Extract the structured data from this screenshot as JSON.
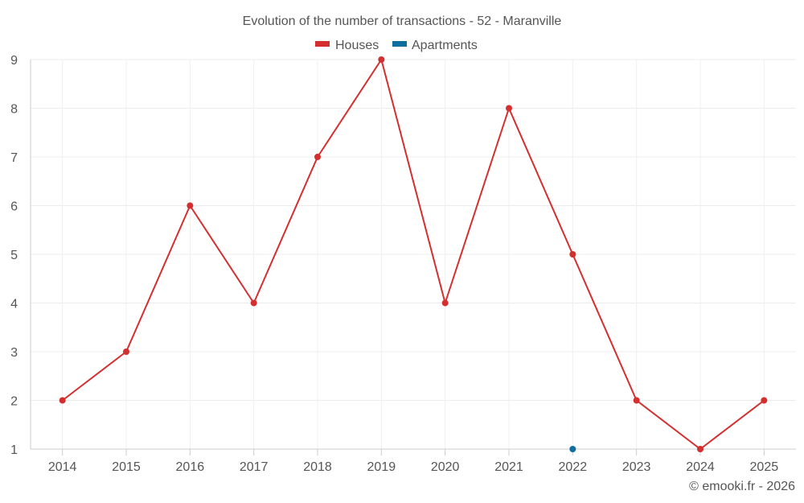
{
  "chart_data": {
    "type": "line",
    "title": "Evolution of the number of transactions - 52 - Maranville",
    "categories": [
      "2014",
      "2015",
      "2016",
      "2017",
      "2018",
      "2019",
      "2020",
      "2021",
      "2022",
      "2023",
      "2024",
      "2025"
    ],
    "series": [
      {
        "name": "Houses",
        "color": "#d32f2f",
        "values": [
          2,
          3,
          6,
          4,
          7,
          9,
          4,
          8,
          5,
          2,
          1,
          2
        ]
      },
      {
        "name": "Apartments",
        "color": "#0d6ea0",
        "values": [
          null,
          null,
          null,
          null,
          null,
          null,
          null,
          null,
          1,
          null,
          null,
          null
        ]
      }
    ],
    "ylim": [
      1,
      9
    ],
    "yticks": [
      1,
      2,
      3,
      4,
      5,
      6,
      7,
      8,
      9
    ],
    "grid": true,
    "legend_position": "top-center",
    "xlabel": "",
    "ylabel": ""
  },
  "credit": "© emooki.fr - 2026"
}
